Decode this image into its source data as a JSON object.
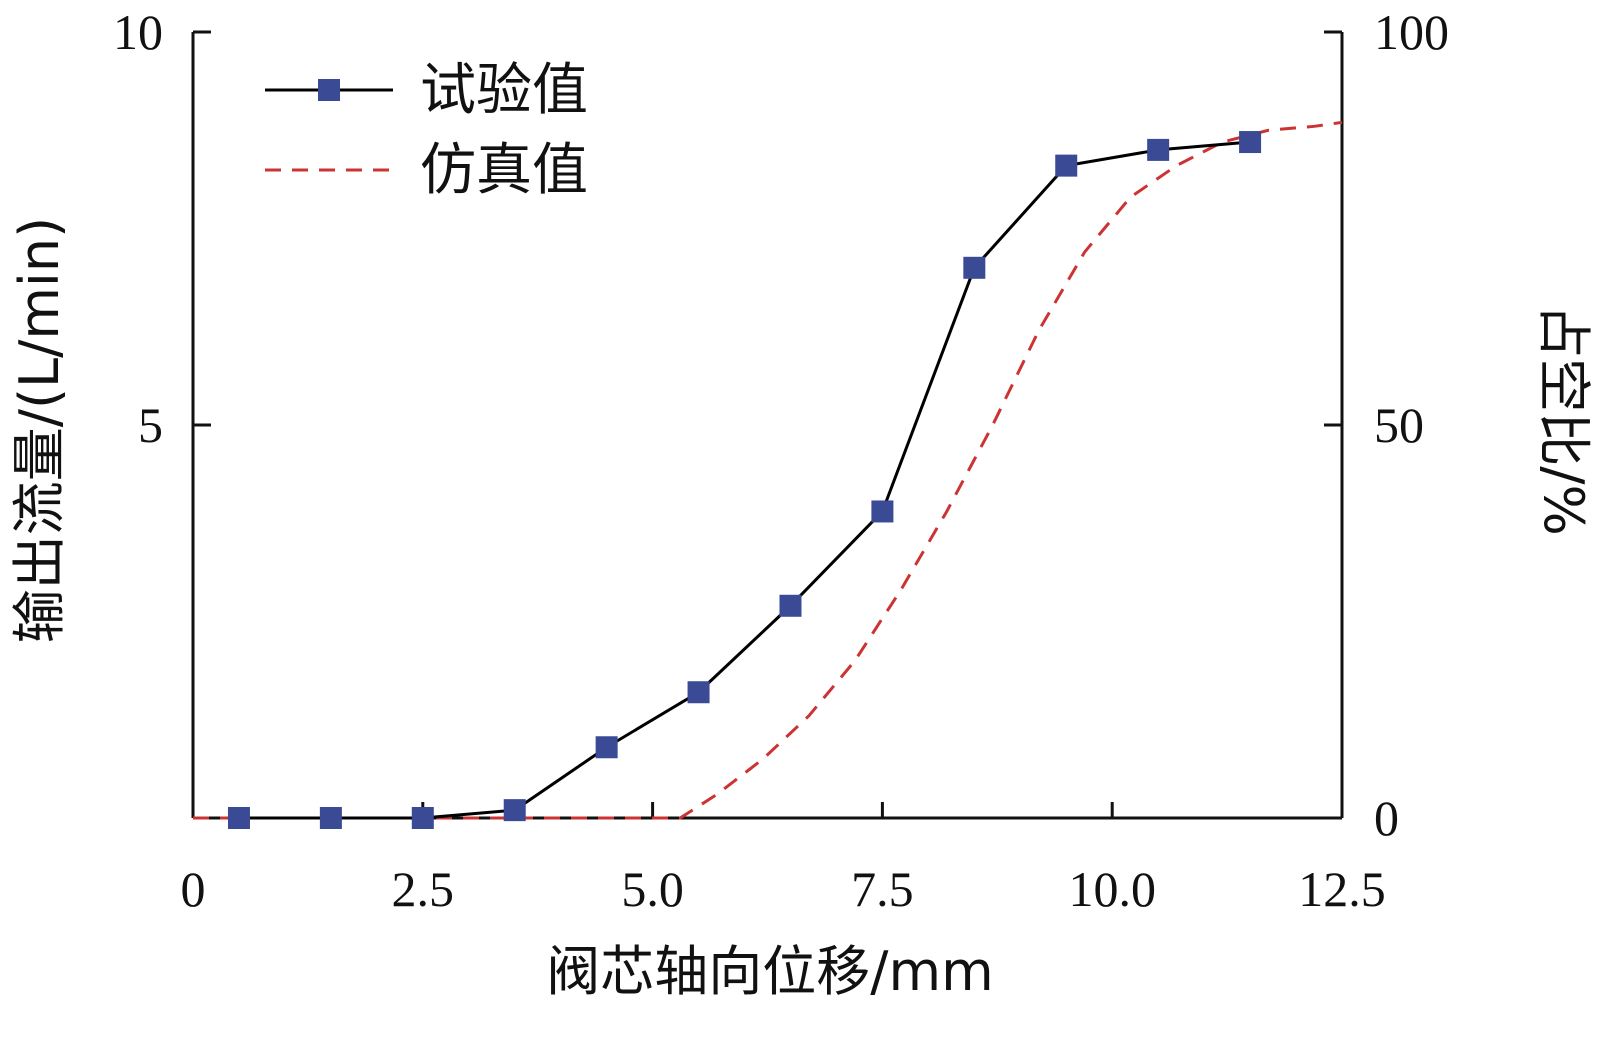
{
  "chart_data": {
    "type": "line",
    "xlabel": "阀芯轴向位移/mm",
    "ylabel": "输出流量/(L/min)",
    "ylabel_right": "占空比/%",
    "xlim": [
      0,
      12.5
    ],
    "ylim": [
      0,
      10
    ],
    "ylim_right": [
      0,
      100
    ],
    "x_ticks": [
      "0",
      "2.5",
      "5.0",
      "7.5",
      "10.0",
      "12.5"
    ],
    "y_ticks": [
      "5",
      "10"
    ],
    "y_ticks_right": [
      "0",
      "50",
      "100"
    ],
    "legend_position": "top-left",
    "series": [
      {
        "name": "试验值",
        "style": "solid-line-square-markers",
        "color": "#000000",
        "marker_color": "#3b4a95",
        "x": [
          0.5,
          1.5,
          2.5,
          3.5,
          4.5,
          5.5,
          6.5,
          7.5,
          8.5,
          9.5,
          10.5,
          11.5
        ],
        "y": [
          0.0,
          0.0,
          0.0,
          0.1,
          0.9,
          1.6,
          2.7,
          3.9,
          7.0,
          8.3,
          8.5,
          8.6
        ]
      },
      {
        "name": "仿真值",
        "style": "dashed-line",
        "color": "#cc3333",
        "x": [
          0.0,
          1.0,
          2.0,
          3.0,
          4.0,
          5.0,
          5.3,
          5.7,
          6.2,
          6.7,
          7.2,
          7.7,
          8.2,
          8.7,
          9.2,
          9.7,
          10.2,
          10.7,
          11.2,
          11.7,
          12.2,
          12.5
        ],
        "y": [
          0.0,
          0.0,
          0.0,
          0.0,
          0.0,
          0.0,
          0.0,
          0.3,
          0.75,
          1.3,
          2.0,
          2.9,
          3.9,
          5.0,
          6.2,
          7.2,
          7.9,
          8.3,
          8.6,
          8.75,
          8.8,
          8.85
        ]
      }
    ]
  }
}
